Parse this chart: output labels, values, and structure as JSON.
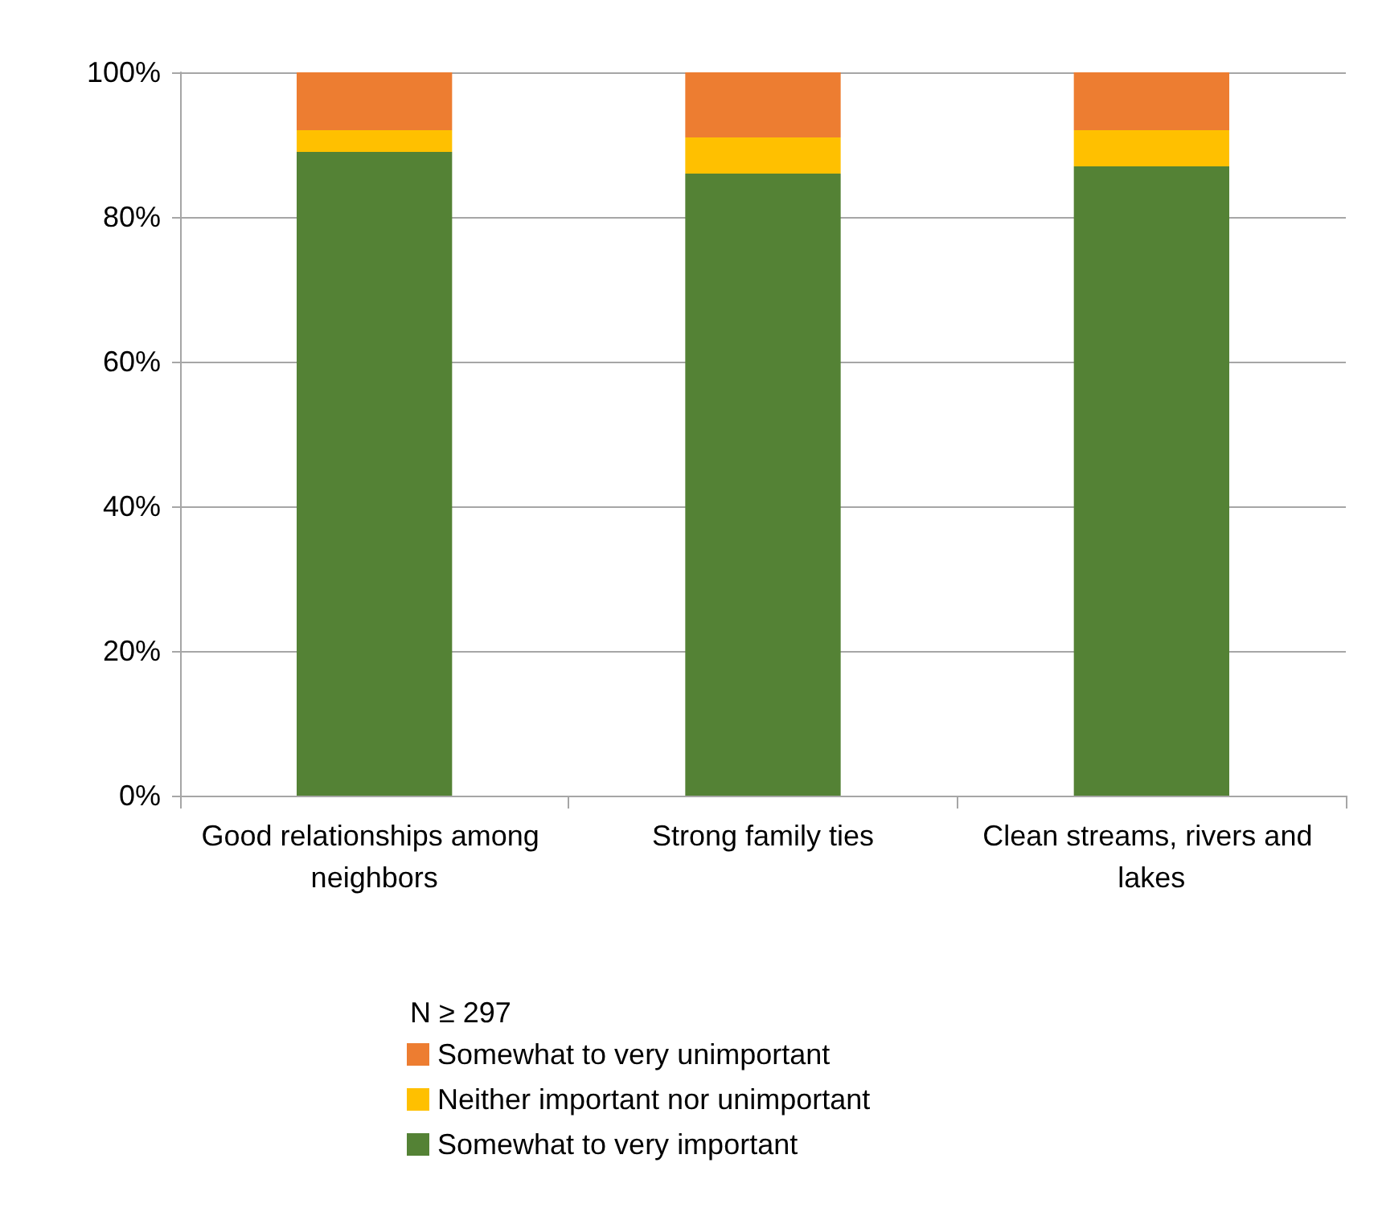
{
  "chart_data": {
    "type": "bar",
    "stacked": true,
    "categories": [
      "Good relationships among neighbors",
      "Strong family ties",
      "Clean streams, rivers and lakes"
    ],
    "series": [
      {
        "name": "Somewhat to very important",
        "color": "#548235",
        "values": [
          89,
          86,
          87
        ]
      },
      {
        "name": "Neither important nor unimportant",
        "color": "#ffc000",
        "values": [
          3,
          5,
          5
        ]
      },
      {
        "name": "Somewhat to very unimportant",
        "color": "#ed7d31",
        "values": [
          8,
          9,
          8
        ]
      }
    ],
    "ylim": [
      0,
      100
    ],
    "yticks": [
      {
        "value": 0,
        "label": "0%"
      },
      {
        "value": 20,
        "label": "20%"
      },
      {
        "value": 40,
        "label": "40%"
      },
      {
        "value": 60,
        "label": "60%"
      },
      {
        "value": 80,
        "label": "80%"
      },
      {
        "value": 100,
        "label": "100%"
      }
    ],
    "grid": "y",
    "legend": "bottom",
    "legend_title": "N ≥ 297"
  }
}
